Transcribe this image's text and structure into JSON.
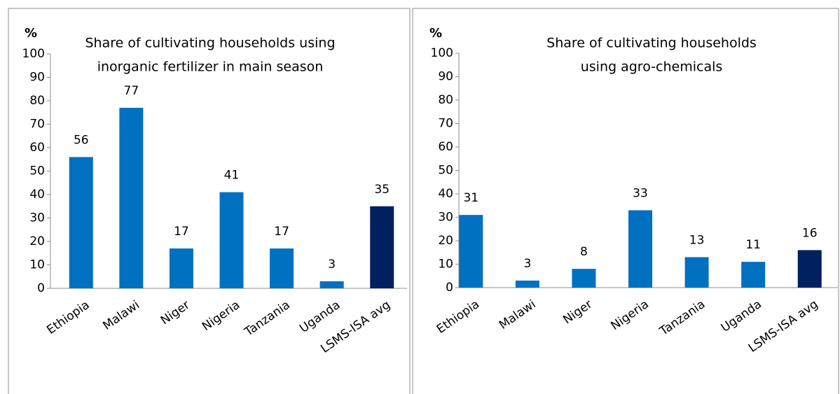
{
  "chart_data": [
    {
      "type": "bar",
      "title": [
        "Share of cultivating households using",
        "inorganic fertilizer in main season"
      ],
      "ylabel": "%",
      "categories": [
        "Ethiopia",
        "Malawi",
        "Niger",
        "Nigeria",
        "Tanzania",
        "Uganda",
        "LSMS-ISA avg"
      ],
      "values": [
        56,
        77,
        17,
        41,
        17,
        3,
        35
      ],
      "colors": [
        "#0070c0",
        "#0070c0",
        "#0070c0",
        "#0070c0",
        "#0070c0",
        "#0070c0",
        "#002060"
      ],
      "ylim": [
        0,
        100
      ],
      "yticks": [
        0,
        10,
        20,
        30,
        40,
        50,
        60,
        70,
        80,
        90,
        100
      ]
    },
    {
      "type": "bar",
      "title": [
        "Share of cultivating households",
        "using agro-chemicals"
      ],
      "ylabel": "%",
      "categories": [
        "Ethiopia",
        "Malawi",
        "Niger",
        "Nigeria",
        "Tanzania",
        "Uganda",
        "LSMS-ISA avg"
      ],
      "values": [
        31,
        3,
        8,
        33,
        13,
        11,
        16
      ],
      "colors": [
        "#0070c0",
        "#0070c0",
        "#0070c0",
        "#0070c0",
        "#0070c0",
        "#0070c0",
        "#002060"
      ],
      "ylim": [
        0,
        100
      ],
      "yticks": [
        0,
        10,
        20,
        30,
        40,
        50,
        60,
        70,
        80,
        90,
        100
      ]
    }
  ]
}
